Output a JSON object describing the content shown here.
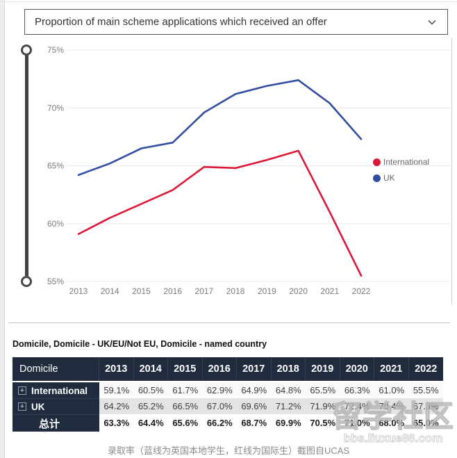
{
  "dropdown": {
    "title": "Proportion of main scheme applications which received an offer"
  },
  "chart_data": {
    "type": "line",
    "title": "Proportion of main scheme applications which received an offer",
    "x": [
      "2013",
      "2014",
      "2015",
      "2016",
      "2017",
      "2018",
      "2019",
      "2020",
      "2021",
      "2022"
    ],
    "series": [
      {
        "name": "International",
        "color": "#dd1738",
        "values": [
          59.1,
          60.5,
          61.7,
          62.9,
          64.9,
          64.8,
          65.5,
          66.3,
          61.0,
          55.5
        ]
      },
      {
        "name": "UK",
        "color": "#2f4ea0",
        "values": [
          64.2,
          65.2,
          66.5,
          67.0,
          69.6,
          71.2,
          71.9,
          72.4,
          70.4,
          67.3
        ]
      }
    ],
    "xlabel": "",
    "ylabel": "",
    "ylim": [
      55,
      75
    ],
    "yticks": [
      {
        "v": 75,
        "label": "75%"
      },
      {
        "v": 70,
        "label": "70%"
      },
      {
        "v": 65,
        "label": "65%"
      },
      {
        "v": 60,
        "label": "60%"
      },
      {
        "v": 55,
        "label": "55%"
      }
    ],
    "grid": true,
    "legend_position": "right"
  },
  "table": {
    "title": "Domicile, Domicile - UK/EU/Not EU, Domicile - named country",
    "corner_header": "Domicile",
    "columns": [
      "2013",
      "2014",
      "2015",
      "2016",
      "2017",
      "2018",
      "2019",
      "2020",
      "2021",
      "2022"
    ],
    "expand_glyph": "+",
    "rows": [
      {
        "label": "International",
        "expandable": true,
        "total": false,
        "values": [
          "59.1%",
          "60.5%",
          "61.7%",
          "62.9%",
          "64.9%",
          "64.8%",
          "65.5%",
          "66.3%",
          "61.0%",
          "55.5%"
        ]
      },
      {
        "label": "UK",
        "expandable": true,
        "total": false,
        "values": [
          "64.2%",
          "65.2%",
          "66.5%",
          "67.0%",
          "69.6%",
          "71.2%",
          "71.9%",
          "72.4%",
          "70.4%",
          "67.3%"
        ]
      },
      {
        "label": "总计",
        "expandable": false,
        "total": true,
        "values": [
          "63.3%",
          "64.4%",
          "65.6%",
          "66.2%",
          "68.7%",
          "69.9%",
          "70.5%",
          "71.0%",
          "68.0%",
          "65.0%"
        ]
      }
    ]
  },
  "watermark": {
    "line1": "留学社区",
    "line2": "bbs.liuxue86.com"
  },
  "caption": "录取率（蓝线为英国本地学生，红线为国际生）截图自UCAS",
  "colors": {
    "international": "#dd1738",
    "uk": "#2f4ea0",
    "table_header_bg": "#202c3e",
    "row_alt_bg": "#e4e4e4",
    "grid_line": "#e9e9e9",
    "axis_text": "#7b7b7b"
  }
}
